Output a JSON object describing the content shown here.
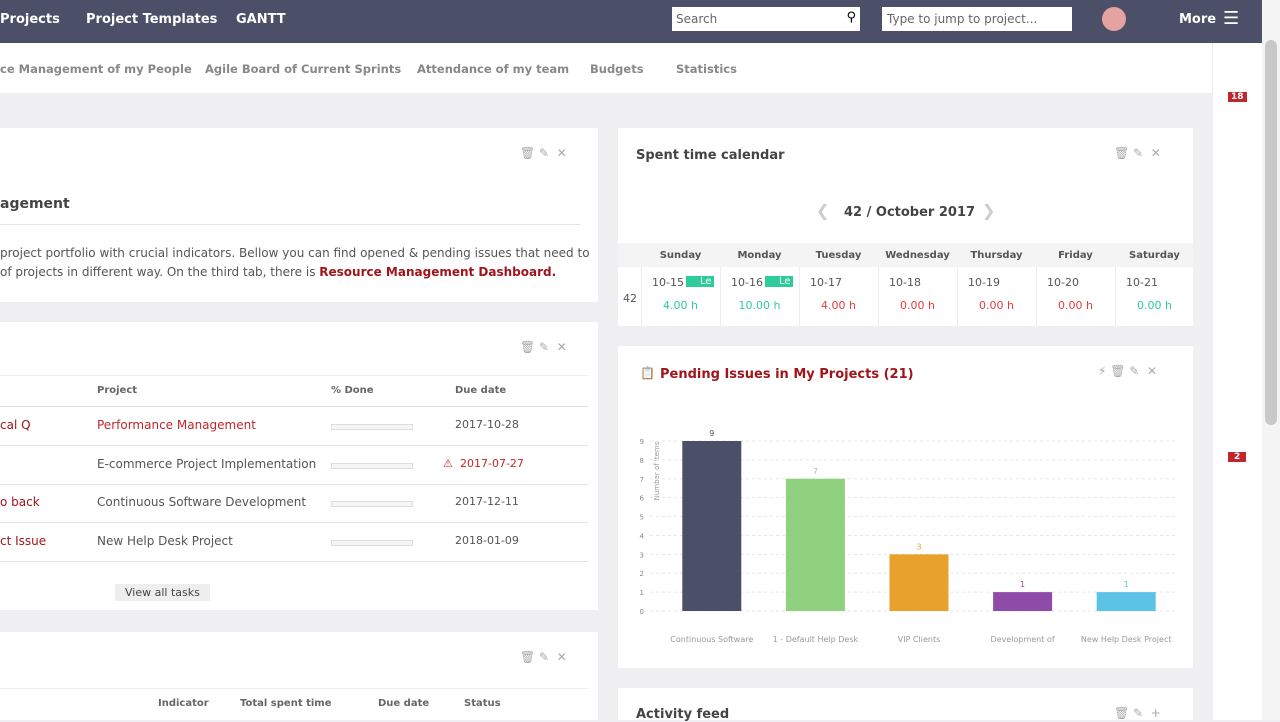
{
  "nav": {
    "items": [
      "Projects",
      "Project Templates",
      "GANTT"
    ],
    "search": "Search",
    "jump": "Type to jump to project...",
    "more": "More"
  },
  "tabs": [
    "ce Management of my People",
    "Agile Board of Current Sprints",
    "Attendance of my team",
    "Budgets",
    "Statistics"
  ],
  "sidebar_badges": [
    "18",
    "2"
  ],
  "intro": {
    "title": "agement",
    "text_1": "project portfolio with crucial indicators. Bellow you can find opened & pending issues that need to",
    "text_2": " of projects in different way. On the third tab, there is ",
    "link": "Resource Management Dashboard."
  },
  "tasks": {
    "headers": [
      "Project",
      "% Done",
      "Due date"
    ],
    "rows": [
      {
        "task": "cal Q",
        "project": "Performance Management",
        "due": "2017-10-28",
        "highlight": true
      },
      {
        "project": "E-commerce Project Implementation",
        "due": "2017-07-27",
        "overdue": true
      },
      {
        "task": "o back",
        "project": "Continuous Software Development",
        "due": "2017-12-11"
      },
      {
        "task": "ct Issue",
        "project": "New Help Desk Project",
        "due": "2018-01-09"
      }
    ],
    "button": "View all tasks"
  },
  "spent": {
    "headers": [
      "Indicator",
      "Total spent time",
      "Due date",
      "Status"
    ]
  },
  "calendar": {
    "title": "Spent time calendar",
    "period": "42 / October 2017",
    "days": [
      "Sunday",
      "Monday",
      "Tuesday",
      "Wednesday",
      "Thursday",
      "Friday",
      "Saturday"
    ],
    "week": "42",
    "cells": [
      {
        "date": "10-15",
        "hours": "4.00 h",
        "tag": "Le",
        "color": "#2ecc9a"
      },
      {
        "date": "10-16",
        "hours": "10.00 h",
        "tag": "Le",
        "color": "#2ecc9a"
      },
      {
        "date": "10-17",
        "hours": "4.00 h",
        "color": "#e03c3c"
      },
      {
        "date": "10-18",
        "hours": "0.00 h",
        "color": "#e03c3c"
      },
      {
        "date": "10-19",
        "hours": "0.00 h",
        "color": "#e03c3c"
      },
      {
        "date": "10-20",
        "hours": "0.00 h",
        "color": "#e03c3c"
      },
      {
        "date": "10-21",
        "hours": "0.00 h",
        "color": "#2ecc9a"
      }
    ]
  },
  "activity": {
    "title": "Activity feed"
  },
  "chart_data": {
    "type": "bar",
    "title": "Pending Issues in My Projects (21)",
    "y_label": "Number of items",
    "categories": [
      "Continuous Software",
      "1 - Default Help Desk",
      "VIP Clients",
      "Development of",
      "New Help Desk Project"
    ],
    "series": [
      {
        "values": [
          9,
          7,
          3,
          1,
          1
        ],
        "colors": [
          "#4b5068",
          "#8fd17e",
          "#e8a22c",
          "#8e4ba8",
          "#5bc4e6"
        ]
      }
    ],
    "ylim": [
      0,
      9
    ],
    "yticks": [
      0,
      1,
      2,
      3,
      4,
      5,
      6,
      7,
      8,
      9
    ],
    "grid": true
  }
}
